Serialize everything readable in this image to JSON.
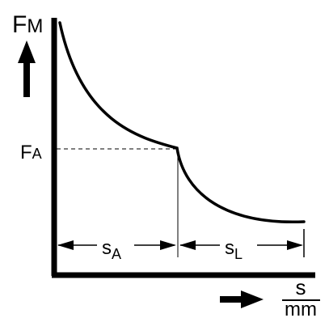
{
  "y_axis": {
    "label_main": "F",
    "label_sub": "M"
  },
  "x_axis": {
    "unit_numerator": "s",
    "unit_denominator": "mm"
  },
  "marker": {
    "label_main": "F",
    "label_sub": "A"
  },
  "segments": [
    {
      "label_main": "s",
      "label_sub": "A"
    },
    {
      "label_main": "s",
      "label_sub": "L"
    }
  ],
  "colors": {
    "ink": "#000000",
    "background": "#ffffff"
  },
  "icons": {
    "y_direction": "arrow-up-icon",
    "x_direction": "arrow-right-icon"
  }
}
